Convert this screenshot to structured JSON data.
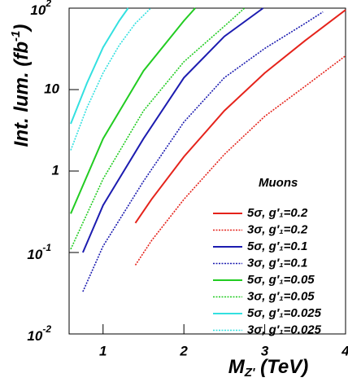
{
  "chart_data": {
    "type": "line",
    "x_label": "M",
    "x_label_sub": "Z'",
    "x_label_rest": " (TeV)",
    "y_label": "Int. lum. (fb",
    "y_label_sup": "-1",
    "y_label_rest": ")",
    "log_y": true,
    "xlim": [
      0.58,
      4
    ],
    "xticks": [
      1,
      2,
      3,
      4
    ],
    "ylim": [
      0.01,
      100
    ],
    "yticks": [
      {
        "value": 0.01,
        "label": "10",
        "exp": "-2"
      },
      {
        "value": 0.1,
        "label": "10",
        "exp": "-1"
      },
      1,
      10,
      {
        "value": 100,
        "label": "10",
        "exp": "2"
      }
    ],
    "legend_title": "Muons",
    "legend_position": "lower right",
    "series": [
      {
        "name": "5σ, g′₁=0.2",
        "color": "#e5231b",
        "dashed": false,
        "x": [
          1.4,
          1.6,
          2,
          2.5,
          3,
          3.5,
          4
        ],
        "values": [
          0.23,
          0.45,
          1.5,
          5.5,
          16,
          40,
          95
        ]
      },
      {
        "name": "3σ, g′₁=0.2",
        "color": "#e5231b",
        "dashed": true,
        "x": [
          1.4,
          1.6,
          2,
          2.5,
          3,
          3.5,
          4
        ],
        "values": [
          0.07,
          0.14,
          0.45,
          1.6,
          4.7,
          11,
          26
        ]
      },
      {
        "name": "5σ, g′₁=0.1",
        "color": "#1c1cb0",
        "dashed": false,
        "x": [
          0.75,
          1,
          1.5,
          2,
          2.5,
          2.98
        ],
        "values": [
          0.1,
          0.38,
          2.5,
          14,
          45,
          100
        ]
      },
      {
        "name": "3σ, g′₁=0.1",
        "color": "#1c1cb0",
        "dashed": true,
        "x": [
          0.75,
          1,
          1.5,
          2,
          2.5,
          3,
          3.5,
          3.72
        ],
        "values": [
          0.033,
          0.12,
          0.75,
          4,
          14,
          32,
          65,
          90
        ]
      },
      {
        "name": "5σ, g′₁=0.05",
        "color": "#22cc22",
        "dashed": false,
        "x": [
          0.6,
          1,
          1.5,
          2,
          2.14
        ],
        "values": [
          0.3,
          2.5,
          17,
          70,
          100
        ]
      },
      {
        "name": "3σ, g′₁=0.05",
        "color": "#22cc22",
        "dashed": true,
        "x": [
          0.6,
          1,
          1.5,
          2,
          2.5,
          2.75
        ],
        "values": [
          0.11,
          0.8,
          5.5,
          22,
          60,
          100
        ]
      },
      {
        "name": "5σ, g′₁=0.025",
        "color": "#33e0e0",
        "dashed": false,
        "x": [
          0.6,
          0.8,
          1,
          1.2,
          1.31
        ],
        "values": [
          3.8,
          12,
          33,
          70,
          100
        ]
      },
      {
        "name": "3σ, g′₁=0.025",
        "color": "#33e0e0",
        "dashed": true,
        "x": [
          0.6,
          0.8,
          1,
          1.2,
          1.4,
          1.59
        ],
        "values": [
          1.8,
          6,
          16,
          35,
          65,
          100
        ]
      }
    ]
  }
}
